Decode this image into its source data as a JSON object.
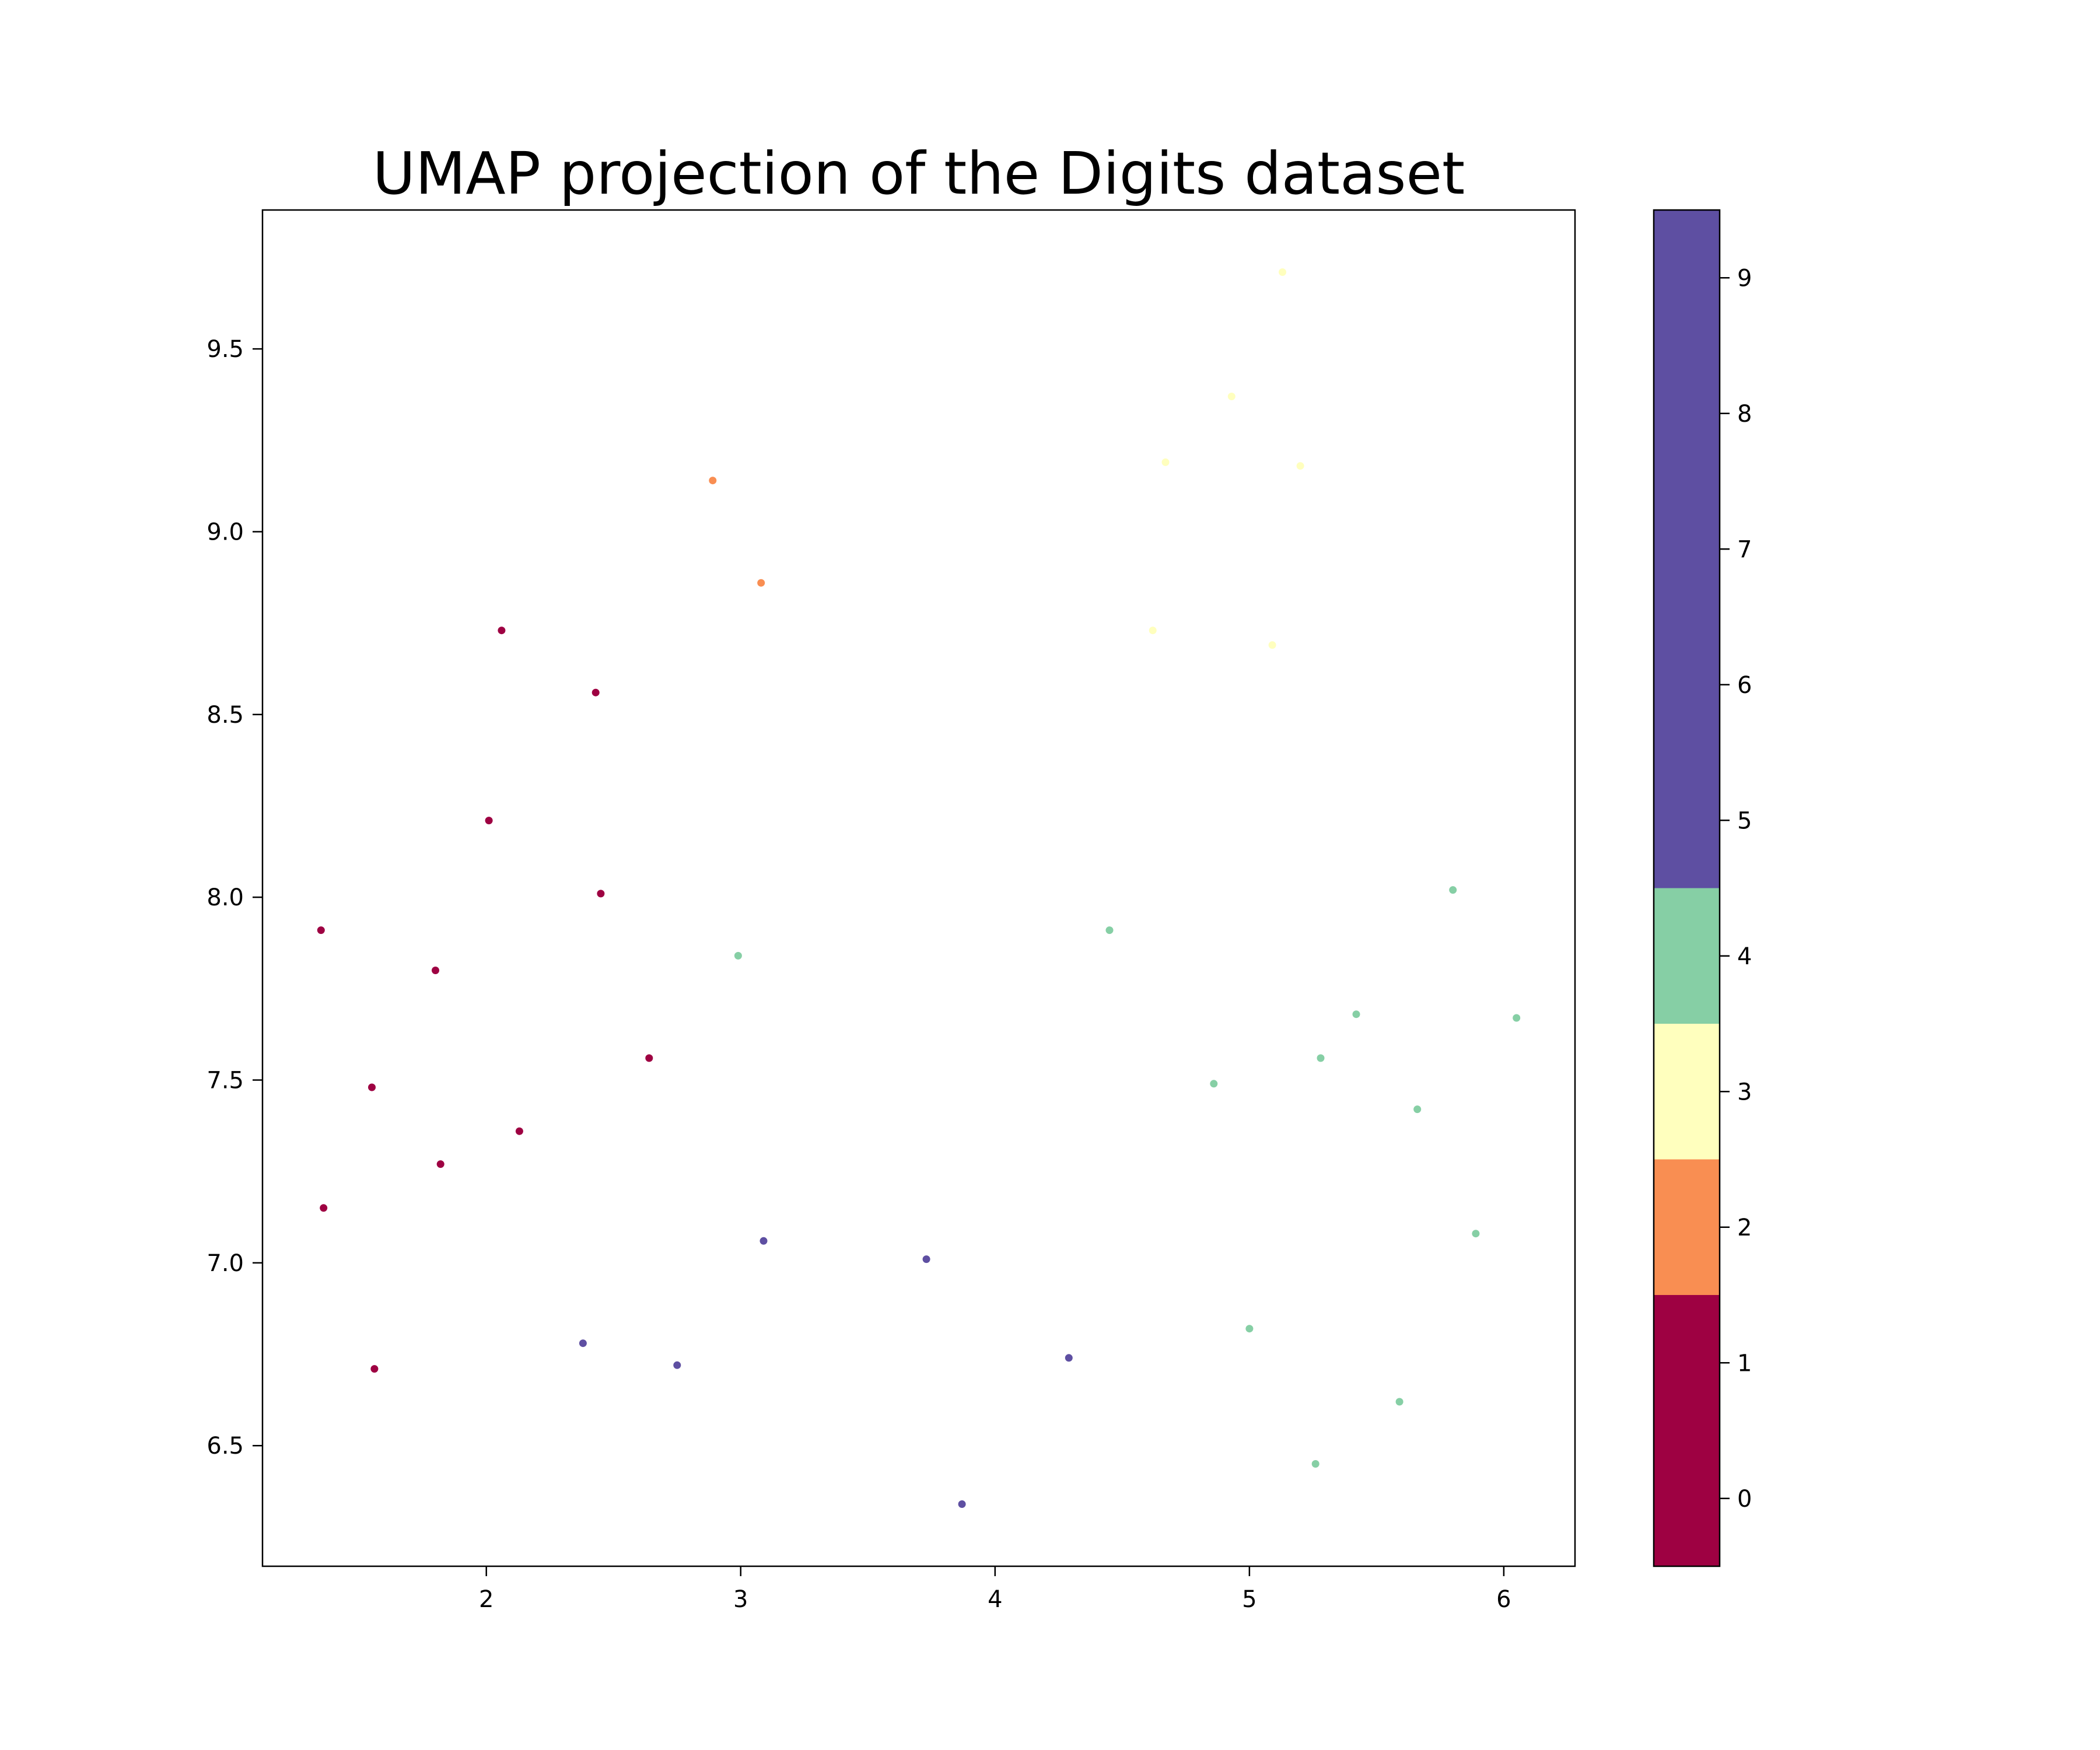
{
  "chart_data": {
    "type": "scatter",
    "title": "UMAP projection of the Digits dataset",
    "xlabel": "",
    "ylabel": "",
    "xlim": [
      1.12,
      6.28
    ],
    "ylim": [
      6.17,
      9.88
    ],
    "xticks": [
      2,
      3,
      4,
      5,
      6
    ],
    "yticks": [
      6.5,
      7.0,
      7.5,
      8.0,
      8.5,
      9.0,
      9.5
    ],
    "xtick_labels": [
      "2",
      "3",
      "4",
      "5",
      "6"
    ],
    "ytick_labels": [
      "6.5",
      "7.0",
      "7.5",
      "8.0",
      "8.5",
      "9.0",
      "9.5"
    ],
    "grid": false,
    "colorbar": {
      "range": [
        -0.5,
        9.5
      ],
      "ticks": [
        0,
        1,
        2,
        3,
        4,
        5,
        6,
        7,
        8,
        9
      ],
      "tick_labels": [
        "0",
        "1",
        "2",
        "3",
        "4",
        "5",
        "6",
        "7",
        "8",
        "9"
      ],
      "bands": [
        {
          "from": -0.5,
          "to": 1.5,
          "color": "#9e0142"
        },
        {
          "from": 1.5,
          "to": 2.5,
          "color": "#f98e52"
        },
        {
          "from": 2.5,
          "to": 3.5,
          "color": "#ffffbe"
        },
        {
          "from": 3.5,
          "to": 4.5,
          "color": "#86cfa5"
        },
        {
          "from": 4.5,
          "to": 9.5,
          "color": "#5e4fa2"
        }
      ]
    },
    "class_colors": {
      "0": "#9e0142",
      "2": "#f98e52",
      "3": "#ffffbe",
      "4": "#86cfa5",
      "5": "#5e4fa2"
    },
    "points": [
      {
        "x": 1.35,
        "y": 7.91,
        "label": 0
      },
      {
        "x": 2.06,
        "y": 8.73,
        "label": 0
      },
      {
        "x": 2.43,
        "y": 8.56,
        "label": 0
      },
      {
        "x": 2.01,
        "y": 8.21,
        "label": 0
      },
      {
        "x": 2.45,
        "y": 8.01,
        "label": 0
      },
      {
        "x": 1.8,
        "y": 7.8,
        "label": 0
      },
      {
        "x": 1.55,
        "y": 7.48,
        "label": 0
      },
      {
        "x": 2.64,
        "y": 7.56,
        "label": 0
      },
      {
        "x": 2.13,
        "y": 7.36,
        "label": 0
      },
      {
        "x": 1.82,
        "y": 7.27,
        "label": 0
      },
      {
        "x": 1.36,
        "y": 7.15,
        "label": 0
      },
      {
        "x": 1.56,
        "y": 6.71,
        "label": 0
      },
      {
        "x": 2.89,
        "y": 9.14,
        "label": 2
      },
      {
        "x": 3.08,
        "y": 8.86,
        "label": 2
      },
      {
        "x": 5.13,
        "y": 9.71,
        "label": 3
      },
      {
        "x": 4.93,
        "y": 9.37,
        "label": 3
      },
      {
        "x": 4.67,
        "y": 9.19,
        "label": 3
      },
      {
        "x": 5.2,
        "y": 9.18,
        "label": 3
      },
      {
        "x": 4.62,
        "y": 8.73,
        "label": 3
      },
      {
        "x": 5.09,
        "y": 8.69,
        "label": 3
      },
      {
        "x": 2.99,
        "y": 7.84,
        "label": 4
      },
      {
        "x": 4.45,
        "y": 7.91,
        "label": 4
      },
      {
        "x": 5.8,
        "y": 8.02,
        "label": 4
      },
      {
        "x": 5.42,
        "y": 7.68,
        "label": 4
      },
      {
        "x": 6.05,
        "y": 7.67,
        "label": 4
      },
      {
        "x": 5.28,
        "y": 7.56,
        "label": 4
      },
      {
        "x": 4.86,
        "y": 7.49,
        "label": 4
      },
      {
        "x": 5.66,
        "y": 7.42,
        "label": 4
      },
      {
        "x": 5.89,
        "y": 7.08,
        "label": 4
      },
      {
        "x": 5.0,
        "y": 6.82,
        "label": 4
      },
      {
        "x": 5.59,
        "y": 6.62,
        "label": 4
      },
      {
        "x": 5.26,
        "y": 6.45,
        "label": 4
      },
      {
        "x": 3.09,
        "y": 7.06,
        "label": 5
      },
      {
        "x": 3.73,
        "y": 7.01,
        "label": 5
      },
      {
        "x": 2.38,
        "y": 6.78,
        "label": 5
      },
      {
        "x": 2.75,
        "y": 6.72,
        "label": 5
      },
      {
        "x": 4.29,
        "y": 6.74,
        "label": 5
      },
      {
        "x": 3.87,
        "y": 6.34,
        "label": 5
      }
    ]
  }
}
